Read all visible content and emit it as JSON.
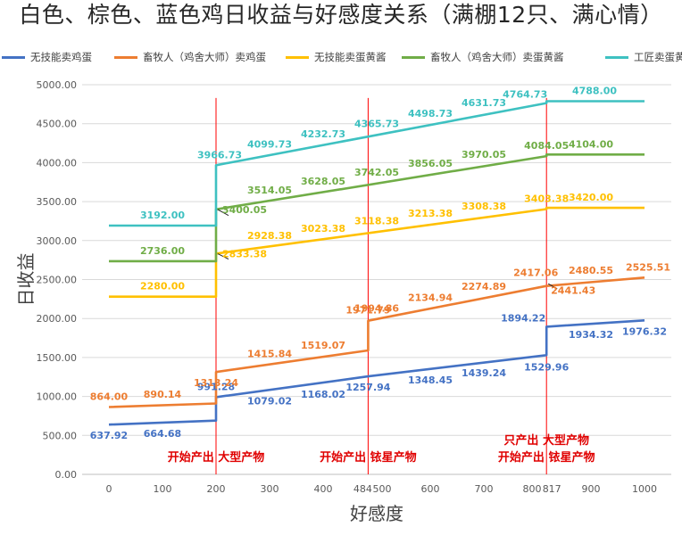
{
  "title": "白色、棕色、蓝色鸡日收益与好感度关系（满棚12只、满心情）",
  "chart_data": {
    "type": "line",
    "title": "白色、棕色、蓝色鸡日收益与好感度关系（满棚12只、满心情）",
    "xlabel": "好感度",
    "ylabel": "日收益",
    "xlim": [
      -50,
      1050
    ],
    "ylim": [
      0,
      5000
    ],
    "x_ticks": [
      0,
      100,
      200,
      300,
      400,
      484,
      500,
      600,
      700,
      800,
      817,
      900,
      1000
    ],
    "x_tick_labels": [
      "0",
      "100",
      "200",
      "300",
      "400",
      "484",
      "500",
      "600",
      "700",
      "800",
      "817",
      "900",
      "1000"
    ],
    "y_ticks": [
      0,
      500,
      1000,
      1500,
      2000,
      2500,
      3000,
      3500,
      4000,
      4500,
      5000
    ],
    "y_tick_labels": [
      "0.00",
      "500.00",
      "1000.00",
      "1500.00",
      "2000.00",
      "2500.00",
      "3000.00",
      "3500.00",
      "4000.00",
      "4500.00",
      "5000.00"
    ],
    "grid": "horizontal",
    "legend_position": "top",
    "series": [
      {
        "name": "无技能卖鸡蛋",
        "color": "#4472c4",
        "points": [
          [
            0,
            637.92
          ],
          [
            200,
            690
          ],
          [
            200,
            991.28
          ],
          [
            484,
            1257.94
          ],
          [
            817,
            1529.96
          ],
          [
            817,
            1894.22
          ],
          [
            1000,
            1976.32
          ]
        ],
        "labels": [
          {
            "x": 0,
            "y": 637.92,
            "text": "637.92"
          },
          {
            "x": 100,
            "y": 664.68,
            "text": "664.68"
          },
          {
            "x": 200,
            "y": 991.28,
            "text": "991.28"
          },
          {
            "x": 300,
            "y": 1079.02,
            "text": "1079.02"
          },
          {
            "x": 400,
            "y": 1168.02,
            "text": "1168.02"
          },
          {
            "x": 484,
            "y": 1257.94,
            "text": "1257.94"
          },
          {
            "x": 600,
            "y": 1348.45,
            "text": "1348.45"
          },
          {
            "x": 700,
            "y": 1439.24,
            "text": "1439.24"
          },
          {
            "x": 817,
            "y": 1529.96,
            "text": "1529.96"
          },
          {
            "x": 817,
            "y": 1894.22,
            "text": "1894.22"
          },
          {
            "x": 900,
            "y": 1934.32,
            "text": "1934.32"
          },
          {
            "x": 1000,
            "y": 1976.32,
            "text": "1976.32"
          }
        ]
      },
      {
        "name": "畜牧人（鸡舍大师）卖鸡蛋",
        "color": "#ed7d31",
        "points": [
          [
            0,
            864.0
          ],
          [
            200,
            910
          ],
          [
            200,
            1313.24
          ],
          [
            484,
            1590
          ],
          [
            484,
            1971.79
          ],
          [
            817,
            2417.06
          ],
          [
            1000,
            2525.51
          ]
        ],
        "labels": [
          {
            "x": 0,
            "y": 864.0,
            "text": "864.00"
          },
          {
            "x": 100,
            "y": 890.14,
            "text": "890.14"
          },
          {
            "x": 200,
            "y": 1313.24,
            "text": "1313.24"
          },
          {
            "x": 300,
            "y": 1415.84,
            "text": "1415.84"
          },
          {
            "x": 400,
            "y": 1519.07,
            "text": "1519.07"
          },
          {
            "x": 484,
            "y": 1971.79,
            "text": "1971.79"
          },
          {
            "x": 500,
            "y": 1994.86,
            "text": "1994.86"
          },
          {
            "x": 600,
            "y": 2134.94,
            "text": "2134.94"
          },
          {
            "x": 700,
            "y": 2274.89,
            "text": "2274.89"
          },
          {
            "x": 817,
            "y": 2417.06,
            "text": "2417.06"
          },
          {
            "x": 817,
            "y": 2441.43,
            "text": "2441.43"
          },
          {
            "x": 900,
            "y": 2480.55,
            "text": "2480.55"
          },
          {
            "x": 1000,
            "y": 2525.51,
            "text": "2525.51"
          }
        ]
      },
      {
        "name": "无技能卖蛋黄酱",
        "color": "#ffc000",
        "points": [
          [
            0,
            2280.0
          ],
          [
            200,
            2280.0
          ],
          [
            200,
            2833.38
          ],
          [
            817,
            3403.38
          ],
          [
            817,
            3420.0
          ],
          [
            1000,
            3420.0
          ]
        ],
        "labels": [
          {
            "x": 100,
            "y": 2280.0,
            "text": "2280.00"
          },
          {
            "x": 200,
            "y": 2833.38,
            "text": "2833.38"
          },
          {
            "x": 300,
            "y": 2928.38,
            "text": "2928.38"
          },
          {
            "x": 400,
            "y": 3023.38,
            "text": "3023.38"
          },
          {
            "x": 500,
            "y": 3118.38,
            "text": "3118.38"
          },
          {
            "x": 600,
            "y": 3213.38,
            "text": "3213.38"
          },
          {
            "x": 700,
            "y": 3308.38,
            "text": "3308.38"
          },
          {
            "x": 817,
            "y": 3403.38,
            "text": "3403.38"
          },
          {
            "x": 900,
            "y": 3420.0,
            "text": "3420.00"
          }
        ]
      },
      {
        "name": "畜牧人（鸡舍大师）卖蛋黄酱",
        "color": "#70ad47",
        "points": [
          [
            0,
            2736.0
          ],
          [
            200,
            2736.0
          ],
          [
            200,
            3400.05
          ],
          [
            817,
            4084.05
          ],
          [
            817,
            4104.0
          ],
          [
            1000,
            4104.0
          ]
        ],
        "labels": [
          {
            "x": 100,
            "y": 2736.0,
            "text": "2736.00"
          },
          {
            "x": 200,
            "y": 3400.05,
            "text": "3400.05"
          },
          {
            "x": 300,
            "y": 3514.05,
            "text": "3514.05"
          },
          {
            "x": 400,
            "y": 3628.05,
            "text": "3628.05"
          },
          {
            "x": 500,
            "y": 3742.05,
            "text": "3742.05"
          },
          {
            "x": 600,
            "y": 3856.05,
            "text": "3856.05"
          },
          {
            "x": 700,
            "y": 3970.05,
            "text": "3970.05"
          },
          {
            "x": 817,
            "y": 4084.05,
            "text": "4084.05"
          },
          {
            "x": 900,
            "y": 4104.0,
            "text": "4104.00"
          }
        ]
      },
      {
        "name": "工匠卖蛋黄酱",
        "color": "#3ec1c1",
        "points": [
          [
            0,
            3192.0
          ],
          [
            200,
            3192.0
          ],
          [
            200,
            3966.73
          ],
          [
            817,
            4764.73
          ],
          [
            817,
            4788.0
          ],
          [
            1000,
            4788.0
          ]
        ],
        "labels": [
          {
            "x": 100,
            "y": 3192.0,
            "text": "3192.00"
          },
          {
            "x": 200,
            "y": 3966.73,
            "text": "3966.73"
          },
          {
            "x": 300,
            "y": 4099.73,
            "text": "4099.73"
          },
          {
            "x": 400,
            "y": 4232.73,
            "text": "4232.73"
          },
          {
            "x": 500,
            "y": 4365.73,
            "text": "4365.73"
          },
          {
            "x": 600,
            "y": 4498.73,
            "text": "4498.73"
          },
          {
            "x": 700,
            "y": 4631.73,
            "text": "4631.73"
          },
          {
            "x": 817,
            "y": 4764.73,
            "text": "4764.73"
          },
          {
            "x": 900,
            "y": 4788.0,
            "text": "4788.00"
          }
        ]
      }
    ],
    "reference_lines": [
      {
        "x": 200,
        "color": "#ff0000",
        "labels": [
          "开始产出 大型产物"
        ]
      },
      {
        "x": 484,
        "color": "#ff0000",
        "labels": [
          "开始产出 铱星产物"
        ]
      },
      {
        "x": 817,
        "color": "#ff0000",
        "labels": [
          "只产出 大型产物",
          "开始产出 铱星产物"
        ]
      }
    ]
  }
}
